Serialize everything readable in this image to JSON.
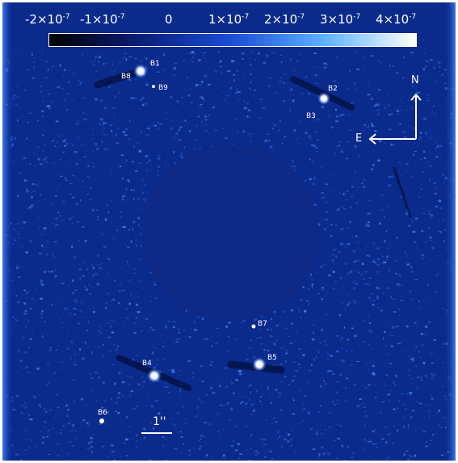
{
  "colorbar": {
    "ticks": [
      {
        "mant": "-2×10",
        "exp": "-7"
      },
      {
        "mant": "-1×10",
        "exp": "-7"
      },
      {
        "mant": "0",
        "exp": ""
      },
      {
        "mant": "1×10",
        "exp": "-7"
      },
      {
        "mant": "2×10",
        "exp": "-7"
      },
      {
        "mant": "3×10",
        "exp": "-7"
      },
      {
        "mant": "4×10",
        "exp": "-7"
      }
    ],
    "range": [
      -2.2e-07,
      4.3e-07
    ],
    "colors": [
      "#000000",
      "#0a1f7a",
      "#1a4fd6",
      "#5db3ff",
      "#ffffff"
    ]
  },
  "sources": [
    {
      "label": "B1"
    },
    {
      "label": "B8"
    },
    {
      "label": "B9"
    },
    {
      "label": "B2"
    },
    {
      "label": "B3"
    },
    {
      "label": "B7"
    },
    {
      "label": "B4"
    },
    {
      "label": "B5"
    },
    {
      "label": "B6"
    }
  ],
  "compass": {
    "north": "N",
    "east": "E"
  },
  "scale": {
    "label": "1''"
  },
  "colors": {
    "background": "#0a2a8c",
    "mask": "#0e2a86",
    "label": "#ffffff"
  }
}
